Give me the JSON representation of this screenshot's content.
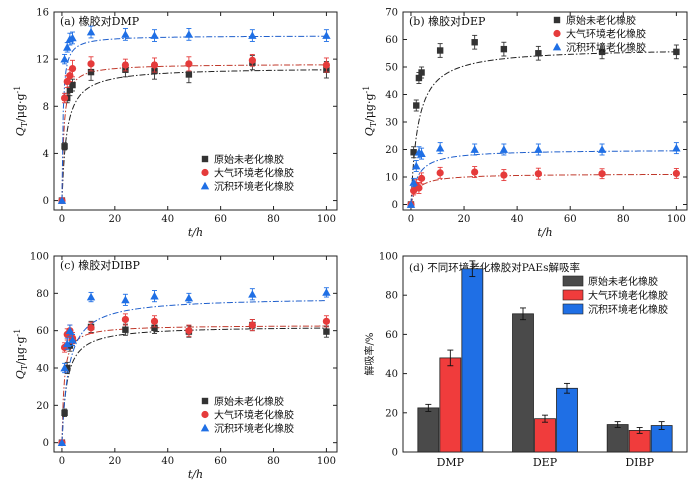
{
  "chart_data": [
    {
      "type": "scatter",
      "title": "(a) 橡胶对DMP",
      "xlabel": "t/h",
      "ylabel_var": "Q",
      "ylabel_sub": "T",
      "ylabel_unit": "/μg·g",
      "ylabel_sup": "-1",
      "xlim": [
        -3,
        104
      ],
      "ylim": [
        -0.8,
        16
      ],
      "xticks": [
        0,
        20,
        40,
        60,
        80,
        100
      ],
      "yticks": [
        0,
        4,
        8,
        12,
        16
      ],
      "legend_position": "bottom-right",
      "series": [
        {
          "name": "原始未老化橡胶",
          "marker": "square",
          "color": "#333333",
          "line_color": "#222222",
          "x": [
            0,
            1,
            2,
            3,
            4,
            11,
            24,
            35,
            48,
            72,
            100
          ],
          "y": [
            0,
            4.6,
            8.7,
            9.4,
            9.8,
            10.9,
            11.1,
            11.0,
            10.7,
            11.7,
            11.1
          ],
          "err": [
            0,
            0.3,
            0.4,
            0.5,
            0.5,
            0.7,
            0.6,
            0.7,
            0.7,
            0.6,
            0.7
          ],
          "fit": {
            "qmax": 11.3,
            "k": 0.55
          }
        },
        {
          "name": "大气环境老化橡胶",
          "marker": "circle",
          "color": "#e53b3b",
          "line_color": "#c0392b",
          "x": [
            0,
            1,
            2,
            3,
            4,
            11,
            24,
            35,
            48,
            72,
            100
          ],
          "y": [
            0,
            8.7,
            10.1,
            10.6,
            11.2,
            11.6,
            11.5,
            11.5,
            11.6,
            11.9,
            11.5
          ],
          "err": [
            0,
            0.4,
            0.5,
            0.5,
            0.7,
            0.6,
            0.5,
            0.6,
            0.6,
            0.5,
            0.6
          ],
          "fit": {
            "qmax": 11.6,
            "k": 1.4
          }
        },
        {
          "name": "沉积环境老化橡胶",
          "marker": "triangle",
          "color": "#1f6fe5",
          "line_color": "#1f5fcc",
          "x": [
            0,
            1,
            2,
            3,
            4,
            11,
            24,
            35,
            48,
            72,
            100
          ],
          "y": [
            0,
            12.0,
            13.0,
            13.7,
            13.8,
            14.3,
            14.1,
            14.0,
            14.1,
            14.0,
            14.0
          ],
          "err": [
            0,
            0.4,
            0.4,
            0.5,
            0.5,
            0.5,
            0.5,
            0.5,
            0.5,
            0.5,
            0.5
          ],
          "fit": {
            "qmax": 14.0,
            "k": 2.4
          }
        }
      ]
    },
    {
      "type": "scatter",
      "title": "(b) 橡胶对DEP",
      "xlabel": "t/h",
      "ylabel_var": "Q",
      "ylabel_sub": "T",
      "ylabel_unit": "/μg·g",
      "ylabel_sup": "-1",
      "xlim": [
        -3,
        104
      ],
      "ylim": [
        -2,
        70
      ],
      "xticks": [
        0,
        20,
        40,
        60,
        80,
        100
      ],
      "yticks": [
        0,
        10,
        20,
        30,
        40,
        50,
        60,
        70
      ],
      "legend_position": "top-right",
      "series": [
        {
          "name": "原始未老化橡胶",
          "marker": "square",
          "color": "#333333",
          "line_color": "#222222",
          "x": [
            0,
            1,
            2,
            3,
            4,
            11,
            24,
            35,
            48,
            72,
            100
          ],
          "y": [
            0,
            19,
            36,
            46,
            48,
            56,
            59,
            56.5,
            55,
            55.5,
            55.5
          ],
          "err": [
            0,
            2,
            2,
            2,
            2,
            2.5,
            2.5,
            2.5,
            2.5,
            2.5,
            2.5
          ],
          "fit": {
            "qmax": 57.0,
            "k": 0.38
          }
        },
        {
          "name": "大气环境老化橡胶",
          "marker": "circle",
          "color": "#e53b3b",
          "line_color": "#c0392b",
          "x": [
            0,
            1,
            2,
            3,
            4,
            11,
            24,
            35,
            48,
            72,
            100
          ],
          "y": [
            0,
            5,
            7,
            6,
            9.5,
            11.5,
            11.8,
            10.7,
            11.2,
            11.2,
            11.3
          ],
          "err": [
            0,
            1.5,
            2,
            2,
            2,
            2,
            2,
            2,
            2,
            1.8,
            1.8
          ],
          "fit": {
            "qmax": 11.2,
            "k": 0.4
          }
        },
        {
          "name": "沉积环境老化橡胶",
          "marker": "triangle",
          "color": "#1f6fe5",
          "line_color": "#1f5fcc",
          "x": [
            0,
            1,
            2,
            3,
            4,
            11,
            24,
            35,
            48,
            72,
            100
          ],
          "y": [
            0,
            8,
            14,
            19,
            18.5,
            20.5,
            20,
            20,
            20,
            20,
            20.5
          ],
          "err": [
            0,
            1.5,
            2,
            2,
            2,
            2,
            2,
            2,
            2,
            2,
            2
          ],
          "fit": {
            "qmax": 20.0,
            "k": 0.4
          }
        }
      ]
    },
    {
      "type": "scatter",
      "title": "(c) 橡胶对DIBP",
      "xlabel": "t/h",
      "ylabel_var": "Q",
      "ylabel_sub": "T",
      "ylabel_unit": "/μg·g",
      "ylabel_sup": "-1",
      "xlim": [
        -3,
        104
      ],
      "ylim": [
        -5,
        100
      ],
      "xticks": [
        0,
        20,
        40,
        60,
        80,
        100
      ],
      "yticks": [
        0,
        20,
        40,
        60,
        80,
        100
      ],
      "legend_position": "bottom-right",
      "series": [
        {
          "name": "原始未老化橡胶",
          "marker": "square",
          "color": "#333333",
          "line_color": "#222222",
          "x": [
            0,
            1,
            2,
            3,
            4,
            11,
            24,
            35,
            48,
            72,
            100
          ],
          "y": [
            0,
            16,
            40,
            52,
            55,
            62,
            60.5,
            61.5,
            59.5,
            63,
            59.5
          ],
          "err": [
            0,
            2,
            3,
            3,
            3,
            3,
            3,
            3,
            3,
            3,
            3
          ],
          "fit": {
            "qmax": 62.5,
            "k": 0.55
          }
        },
        {
          "name": "大气环境老化橡胶",
          "marker": "circle",
          "color": "#e53b3b",
          "line_color": "#c0392b",
          "x": [
            0,
            1,
            2,
            3,
            4,
            11,
            24,
            35,
            48,
            72,
            100
          ],
          "y": [
            0,
            51,
            58,
            60,
            56,
            61.5,
            66,
            65,
            60,
            63,
            65
          ],
          "err": [
            0,
            2.5,
            3,
            3,
            3,
            3,
            3,
            3,
            3,
            3,
            3
          ],
          "fit": {
            "qmax": 63.0,
            "k": 1.2
          }
        },
        {
          "name": "沉积环境老化橡胶",
          "marker": "triangle",
          "color": "#1f6fe5",
          "line_color": "#1f5fcc",
          "x": [
            0,
            1,
            2,
            3,
            4,
            11,
            24,
            35,
            48,
            72,
            100
          ],
          "y": [
            0,
            40,
            53,
            60,
            55,
            78,
            76.5,
            78.5,
            77.5,
            79.5,
            80.5
          ],
          "err": [
            0,
            2.5,
            3,
            3,
            3,
            2.5,
            3,
            3,
            2.5,
            3,
            2.5
          ],
          "fit": {
            "qmax": 78.0,
            "k": 0.4
          }
        }
      ]
    },
    {
      "type": "bar",
      "title": "(d) 不同环境老化橡胶对PAEs解吸率",
      "xlabel": "",
      "ylabel": "解吸率/%",
      "ylim": [
        0,
        100
      ],
      "yticks": [
        0,
        20,
        40,
        60,
        80,
        100
      ],
      "categories": [
        "DMP",
        "DEP",
        "DIBP"
      ],
      "legend_position": "top-right",
      "series": [
        {
          "name": "原始未老化橡胶",
          "color": "#4a4a4a",
          "values": [
            22.5,
            70.5,
            14.0
          ],
          "err": [
            1.8,
            3.0,
            1.5
          ]
        },
        {
          "name": "大气环境老化橡胶",
          "color": "#f03c3c",
          "values": [
            48.0,
            17.0,
            11.0
          ],
          "err": [
            4.0,
            1.8,
            1.5
          ]
        },
        {
          "name": "沉积环境老化橡胶",
          "color": "#1f6fe5",
          "values": [
            93.5,
            32.5,
            13.5
          ],
          "err": [
            4.0,
            2.5,
            2.0
          ]
        }
      ]
    }
  ]
}
